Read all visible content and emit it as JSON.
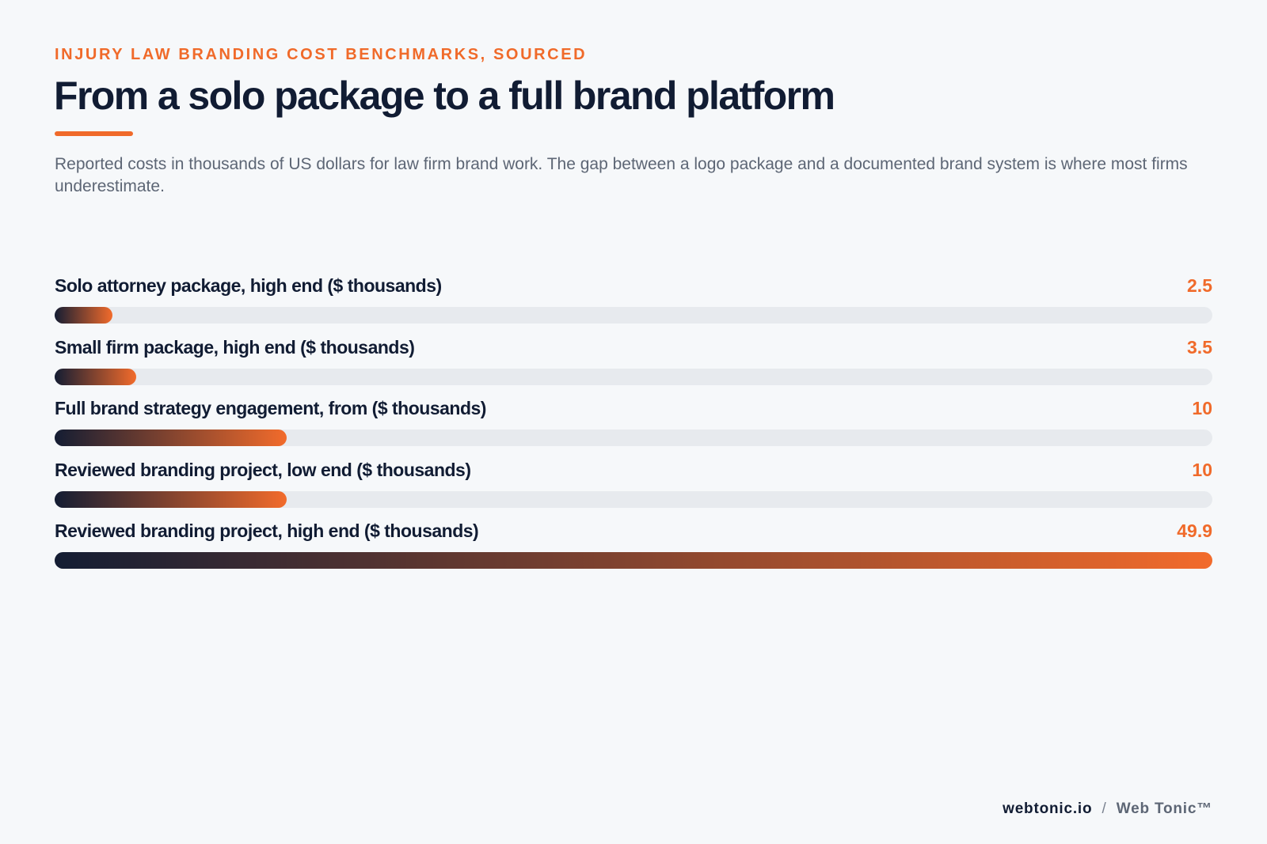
{
  "header": {
    "eyebrow": "INJURY LAW BRANDING COST BENCHMARKS, SOURCED",
    "title": "From a solo package to a full brand platform",
    "subtitle": "Reported costs in thousands of US dollars for law firm brand work. The gap between a logo package and a documented brand system is where most firms underestimate."
  },
  "colors": {
    "accent": "#f06a2a",
    "navy": "#111c33",
    "track": "#e7eaee",
    "background": "#f6f8fa"
  },
  "chart_data": {
    "type": "bar",
    "orientation": "horizontal",
    "xlim": [
      0,
      49.9
    ],
    "categories": [
      "Solo attorney package, high end ($ thousands)",
      "Small firm package, high end ($ thousands)",
      "Full brand strategy engagement, from ($ thousands)",
      "Reviewed branding project, low end ($ thousands)",
      "Reviewed branding project, high end ($ thousands)"
    ],
    "values": [
      2.5,
      3.5,
      10,
      10,
      49.9
    ],
    "value_labels": [
      "2.5",
      "3.5",
      "10",
      "10",
      "49.9"
    ],
    "grid": false,
    "legend": "none"
  },
  "footer": {
    "domain": "webtonic.io",
    "separator": "/",
    "brand": "Web Tonic™"
  }
}
